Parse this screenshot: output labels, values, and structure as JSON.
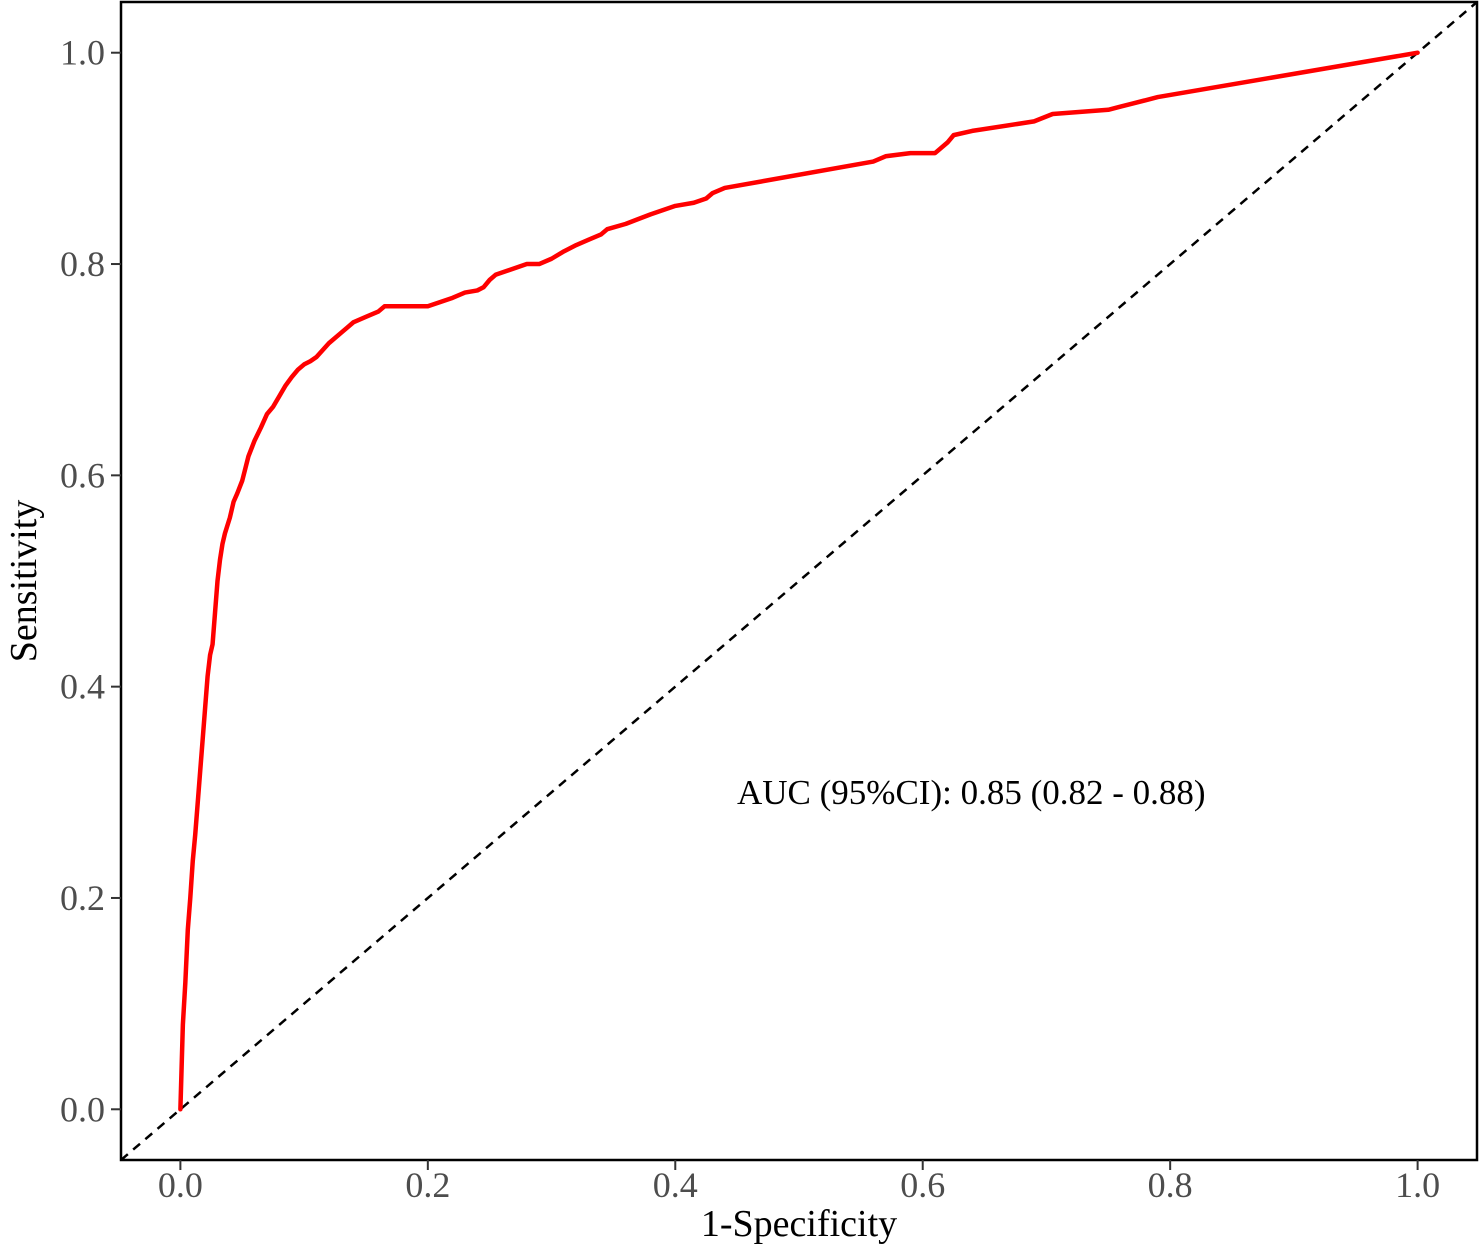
{
  "chart_data": {
    "type": "line",
    "title": "",
    "xlabel": "1-Specificity",
    "ylabel": "Sensitivity",
    "xlim": [
      -0.048,
      1.048
    ],
    "ylim": [
      -0.048,
      1.048
    ],
    "x_ticks": [
      0.0,
      0.2,
      0.4,
      0.6,
      0.8,
      1.0
    ],
    "x_tick_labels": [
      "0.0",
      "0.2",
      "0.4",
      "0.6",
      "0.8",
      "1.0"
    ],
    "y_ticks": [
      0.0,
      0.2,
      0.4,
      0.6,
      0.8,
      1.0
    ],
    "y_tick_labels": [
      "0.0",
      "0.2",
      "0.4",
      "0.6",
      "0.8",
      "1.0"
    ],
    "grid": false,
    "annotation": "AUC (95%CI): 0.85 (0.82 - 0.88)",
    "series": [
      {
        "color": "#ff0000",
        "style": "solid",
        "x": [
          0.0,
          0.001,
          0.002,
          0.004,
          0.006,
          0.008,
          0.01,
          0.012,
          0.014,
          0.016,
          0.018,
          0.02,
          0.022,
          0.024,
          0.026,
          0.028,
          0.03,
          0.032,
          0.034,
          0.036,
          0.04,
          0.043,
          0.046,
          0.05,
          0.055,
          0.06,
          0.065,
          0.07,
          0.075,
          0.08,
          0.085,
          0.09,
          0.095,
          0.1,
          0.105,
          0.11,
          0.12,
          0.13,
          0.135,
          0.14,
          0.15,
          0.16,
          0.165,
          0.17,
          0.175,
          0.2,
          0.22,
          0.23,
          0.24,
          0.245,
          0.25,
          0.255,
          0.28,
          0.29,
          0.3,
          0.31,
          0.32,
          0.33,
          0.34,
          0.345,
          0.36,
          0.38,
          0.39,
          0.4,
          0.415,
          0.425,
          0.43,
          0.44,
          0.56,
          0.57,
          0.59,
          0.61,
          0.62,
          0.625,
          0.64,
          0.69,
          0.705,
          0.75,
          0.76,
          0.77,
          0.78,
          0.79,
          1.0
        ],
        "y": [
          0.0,
          0.04,
          0.08,
          0.12,
          0.17,
          0.2,
          0.235,
          0.26,
          0.29,
          0.32,
          0.35,
          0.38,
          0.41,
          0.43,
          0.44,
          0.47,
          0.5,
          0.52,
          0.535,
          0.545,
          0.56,
          0.575,
          0.583,
          0.595,
          0.618,
          0.633,
          0.645,
          0.658,
          0.665,
          0.675,
          0.685,
          0.693,
          0.7,
          0.705,
          0.708,
          0.712,
          0.725,
          0.735,
          0.74,
          0.745,
          0.75,
          0.755,
          0.76,
          0.76,
          0.76,
          0.76,
          0.768,
          0.773,
          0.775,
          0.778,
          0.785,
          0.79,
          0.8,
          0.8,
          0.805,
          0.812,
          0.818,
          0.823,
          0.828,
          0.833,
          0.838,
          0.847,
          0.851,
          0.855,
          0.858,
          0.862,
          0.867,
          0.872,
          0.897,
          0.902,
          0.905,
          0.905,
          0.915,
          0.922,
          0.926,
          0.935,
          0.942,
          0.946,
          0.949,
          0.952,
          0.955,
          0.958,
          1.0
        ]
      },
      {
        "color": "#000000",
        "style": "dashed",
        "x": [
          -0.048,
          1.048
        ],
        "y": [
          -0.048,
          1.048
        ]
      }
    ]
  }
}
